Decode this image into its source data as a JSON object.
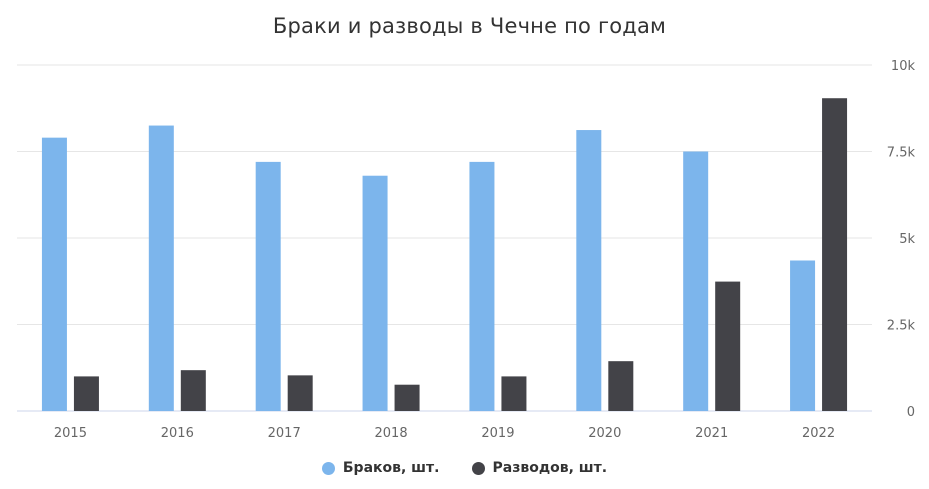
{
  "chart_data": {
    "type": "bar",
    "title": "Браки и разводы в Чечне по годам",
    "categories": [
      "2015",
      "2016",
      "2017",
      "2018",
      "2019",
      "2020",
      "2021",
      "2022"
    ],
    "series": [
      {
        "name": "Браков, шт.",
        "color": "#7cb5ec",
        "values": [
          7900,
          8250,
          7200,
          6800,
          7200,
          8120,
          7500,
          4350
        ]
      },
      {
        "name": "Разводов, шт.",
        "color": "#434348",
        "values": [
          1000,
          1180,
          1030,
          760,
          1000,
          1440,
          3740,
          9040
        ]
      }
    ],
    "ylim": [
      0,
      10000
    ],
    "y_ticks": [
      "0",
      "2.5k",
      "5k",
      "7.5k",
      "10k"
    ],
    "y_tick_values": [
      0,
      2500,
      5000,
      7500,
      10000
    ],
    "y_axis_side": "right",
    "grid": true,
    "legend_position": "bottom-center",
    "xlabel": "",
    "ylabel": ""
  }
}
